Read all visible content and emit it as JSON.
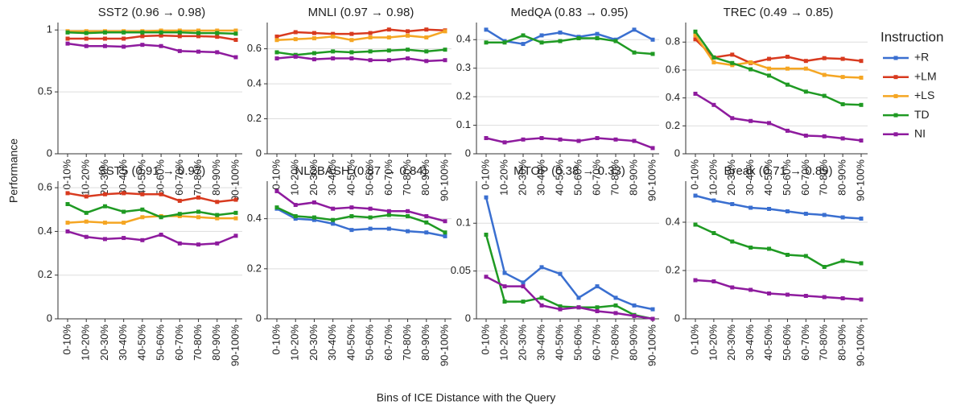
{
  "ylabel": "Performance",
  "xlabel": "Bins of ICE Distance with the Query",
  "legend_title": "Instruction",
  "chart_data": [
    {
      "type": "line",
      "title": "SST2 (0.96 → 0.98)",
      "categories": [
        "0-10%",
        "10-20%",
        "20-30%",
        "30-40%",
        "40-50%",
        "50-60%",
        "60-70%",
        "70-80%",
        "80-90%",
        "90-100%"
      ],
      "ylim": [
        0,
        1.06
      ],
      "yticks": [
        0,
        0.5,
        1
      ],
      "grid": true,
      "series": [
        {
          "name": "+LM",
          "color": "#d83a1f",
          "values": [
            0.93,
            0.93,
            0.93,
            0.93,
            0.95,
            0.955,
            0.95,
            0.95,
            0.945,
            0.92
          ]
        },
        {
          "name": "+LS",
          "color": "#f5a623",
          "values": [
            0.99,
            0.99,
            0.99,
            0.99,
            0.99,
            0.995,
            0.995,
            0.995,
            0.995,
            0.995
          ]
        },
        {
          "name": "TD",
          "color": "#1f9a23",
          "values": [
            0.98,
            0.975,
            0.98,
            0.98,
            0.98,
            0.98,
            0.98,
            0.975,
            0.975,
            0.97
          ]
        },
        {
          "name": "NI",
          "color": "#8e1b9e",
          "values": [
            0.89,
            0.87,
            0.87,
            0.865,
            0.88,
            0.87,
            0.83,
            0.825,
            0.82,
            0.78
          ]
        }
      ]
    },
    {
      "type": "line",
      "title": "MNLI (0.97 → 0.98)",
      "categories": [
        "0-10%",
        "10-20%",
        "20-30%",
        "30-40%",
        "40-50%",
        "50-60%",
        "60-70%",
        "70-80%",
        "80-90%",
        "90-100%"
      ],
      "ylim": [
        0,
        0.75
      ],
      "yticks": [
        0,
        0.2,
        0.4,
        0.6
      ],
      "grid": true,
      "series": [
        {
          "name": "+LM",
          "color": "#d83a1f",
          "values": [
            0.67,
            0.695,
            0.69,
            0.685,
            0.685,
            0.69,
            0.71,
            0.7,
            0.71,
            0.705
          ]
        },
        {
          "name": "+LS",
          "color": "#f5a623",
          "values": [
            0.65,
            0.655,
            0.66,
            0.67,
            0.65,
            0.665,
            0.665,
            0.675,
            0.665,
            0.7
          ]
        },
        {
          "name": "TD",
          "color": "#1f9a23",
          "values": [
            0.58,
            0.565,
            0.575,
            0.585,
            0.58,
            0.585,
            0.59,
            0.595,
            0.585,
            0.595
          ]
        },
        {
          "name": "NI",
          "color": "#8e1b9e",
          "values": [
            0.545,
            0.555,
            0.54,
            0.545,
            0.545,
            0.535,
            0.535,
            0.545,
            0.53,
            0.535
          ]
        }
      ]
    },
    {
      "type": "line",
      "title": "MedQA (0.83 → 0.95)",
      "categories": [
        "0-10%",
        "10-20%",
        "20-30%",
        "30-40%",
        "40-50%",
        "50-60%",
        "60-70%",
        "70-80%",
        "80-90%",
        "90-100%"
      ],
      "ylim": [
        0,
        0.46
      ],
      "yticks": [
        0,
        0.1,
        0.2,
        0.3,
        0.4
      ],
      "grid": true,
      "series": [
        {
          "name": "+R",
          "color": "#3a6fd0",
          "values": [
            0.435,
            0.395,
            0.385,
            0.415,
            0.425,
            0.41,
            0.42,
            0.4,
            0.435,
            0.4
          ]
        },
        {
          "name": "TD",
          "color": "#1f9a23",
          "values": [
            0.39,
            0.39,
            0.415,
            0.39,
            0.395,
            0.405,
            0.405,
            0.395,
            0.355,
            0.35
          ]
        },
        {
          "name": "NI",
          "color": "#8e1b9e",
          "values": [
            0.055,
            0.04,
            0.05,
            0.055,
            0.05,
            0.045,
            0.055,
            0.05,
            0.045,
            0.02
          ]
        }
      ]
    },
    {
      "type": "line",
      "title": "TREC (0.49 → 0.85)",
      "categories": [
        "0-10%",
        "10-20%",
        "20-30%",
        "30-40%",
        "40-50%",
        "50-60%",
        "60-70%",
        "70-80%",
        "80-90%",
        "90-100%"
      ],
      "ylim": [
        0,
        0.94
      ],
      "yticks": [
        0,
        0.2,
        0.4,
        0.6,
        0.8
      ],
      "grid": true,
      "series": [
        {
          "name": "+LM",
          "color": "#d83a1f",
          "values": [
            0.82,
            0.69,
            0.71,
            0.65,
            0.68,
            0.695,
            0.665,
            0.685,
            0.68,
            0.665
          ]
        },
        {
          "name": "+LS",
          "color": "#f5a623",
          "values": [
            0.85,
            0.655,
            0.635,
            0.655,
            0.61,
            0.61,
            0.61,
            0.565,
            0.55,
            0.545
          ]
        },
        {
          "name": "TD",
          "color": "#1f9a23",
          "values": [
            0.875,
            0.69,
            0.65,
            0.605,
            0.56,
            0.495,
            0.445,
            0.415,
            0.355,
            0.35
          ]
        },
        {
          "name": "NI",
          "color": "#8e1b9e",
          "values": [
            0.43,
            0.35,
            0.255,
            0.235,
            0.22,
            0.165,
            0.13,
            0.125,
            0.11,
            0.095
          ]
        }
      ]
    },
    {
      "type": "line",
      "title": "SST5 (0.91 → 0.97)",
      "categories": [
        "0-10%",
        "10-20%",
        "20-30%",
        "30-40%",
        "40-50%",
        "50-60%",
        "60-70%",
        "70-80%",
        "80-90%",
        "90-100%"
      ],
      "ylim": [
        0,
        0.63
      ],
      "yticks": [
        0,
        0.2,
        0.4,
        0.6
      ],
      "grid": true,
      "series": [
        {
          "name": "+LM",
          "color": "#d83a1f",
          "values": [
            0.575,
            0.56,
            0.57,
            0.575,
            0.57,
            0.57,
            0.54,
            0.555,
            0.535,
            0.545
          ]
        },
        {
          "name": "+LS",
          "color": "#f5a623",
          "values": [
            0.44,
            0.445,
            0.44,
            0.44,
            0.465,
            0.47,
            0.47,
            0.465,
            0.46,
            0.46
          ]
        },
        {
          "name": "TD",
          "color": "#1f9a23",
          "values": [
            0.525,
            0.485,
            0.515,
            0.49,
            0.5,
            0.465,
            0.48,
            0.49,
            0.475,
            0.485
          ]
        },
        {
          "name": "NI",
          "color": "#8e1b9e",
          "values": [
            0.4,
            0.375,
            0.365,
            0.37,
            0.36,
            0.385,
            0.345,
            0.34,
            0.345,
            0.38
          ]
        }
      ]
    },
    {
      "type": "line",
      "title": "NL2BASH (0.87 → 0.84)",
      "categories": [
        "0-10%",
        "10-20%",
        "20-30%",
        "30-40%",
        "40-50%",
        "50-60%",
        "60-70%",
        "70-80%",
        "80-90%",
        "90-100%"
      ],
      "ylim": [
        0,
        0.55
      ],
      "yticks": [
        0,
        0.2,
        0.4
      ],
      "grid": true,
      "series": [
        {
          "name": "+R",
          "color": "#3a6fd0",
          "values": [
            0.44,
            0.4,
            0.395,
            0.38,
            0.355,
            0.36,
            0.36,
            0.35,
            0.345,
            0.33
          ]
        },
        {
          "name": "TD",
          "color": "#1f9a23",
          "values": [
            0.445,
            0.41,
            0.405,
            0.395,
            0.41,
            0.405,
            0.415,
            0.41,
            0.385,
            0.345
          ]
        },
        {
          "name": "NI",
          "color": "#8e1b9e",
          "values": [
            0.51,
            0.455,
            0.465,
            0.44,
            0.445,
            0.44,
            0.43,
            0.43,
            0.41,
            0.39
          ]
        }
      ]
    },
    {
      "type": "line",
      "title": "MTOP (0.38 → 0.33)",
      "categories": [
        "0-10%",
        "10-20%",
        "20-30%",
        "30-40%",
        "40-50%",
        "50-60%",
        "60-70%",
        "70-80%",
        "80-90%",
        "90-100%"
      ],
      "ylim": [
        0,
        0.144
      ],
      "yticks": [
        0,
        0.05,
        0.1
      ],
      "grid": true,
      "series": [
        {
          "name": "+R",
          "color": "#3a6fd0",
          "values": [
            0.127,
            0.048,
            0.038,
            0.054,
            0.047,
            0.022,
            0.034,
            0.022,
            0.014,
            0.01
          ]
        },
        {
          "name": "TD",
          "color": "#1f9a23",
          "values": [
            0.088,
            0.018,
            0.018,
            0.022,
            0.013,
            0.012,
            0.012,
            0.014,
            0.004,
            0
          ]
        },
        {
          "name": "NI",
          "color": "#8e1b9e",
          "values": [
            0.044,
            0.034,
            0.034,
            0.014,
            0.01,
            0.012,
            0.008,
            0.006,
            0.003,
            0
          ]
        }
      ]
    },
    {
      "type": "line",
      "title": "Break (0.71 → 0.89)",
      "categories": [
        "0-10%",
        "10-20%",
        "20-30%",
        "30-40%",
        "40-50%",
        "50-60%",
        "60-70%",
        "70-80%",
        "80-90%",
        "90-100%"
      ],
      "ylim": [
        0,
        0.57
      ],
      "yticks": [
        0,
        0.2,
        0.4
      ],
      "grid": true,
      "series": [
        {
          "name": "+R",
          "color": "#3a6fd0",
          "values": [
            0.51,
            0.49,
            0.475,
            0.46,
            0.455,
            0.445,
            0.435,
            0.43,
            0.42,
            0.415
          ]
        },
        {
          "name": "TD",
          "color": "#1f9a23",
          "values": [
            0.39,
            0.355,
            0.32,
            0.295,
            0.29,
            0.265,
            0.26,
            0.215,
            0.24,
            0.23
          ]
        },
        {
          "name": "NI",
          "color": "#8e1b9e",
          "values": [
            0.16,
            0.155,
            0.13,
            0.12,
            0.105,
            0.1,
            0.095,
            0.09,
            0.085,
            0.08
          ]
        }
      ]
    }
  ]
}
